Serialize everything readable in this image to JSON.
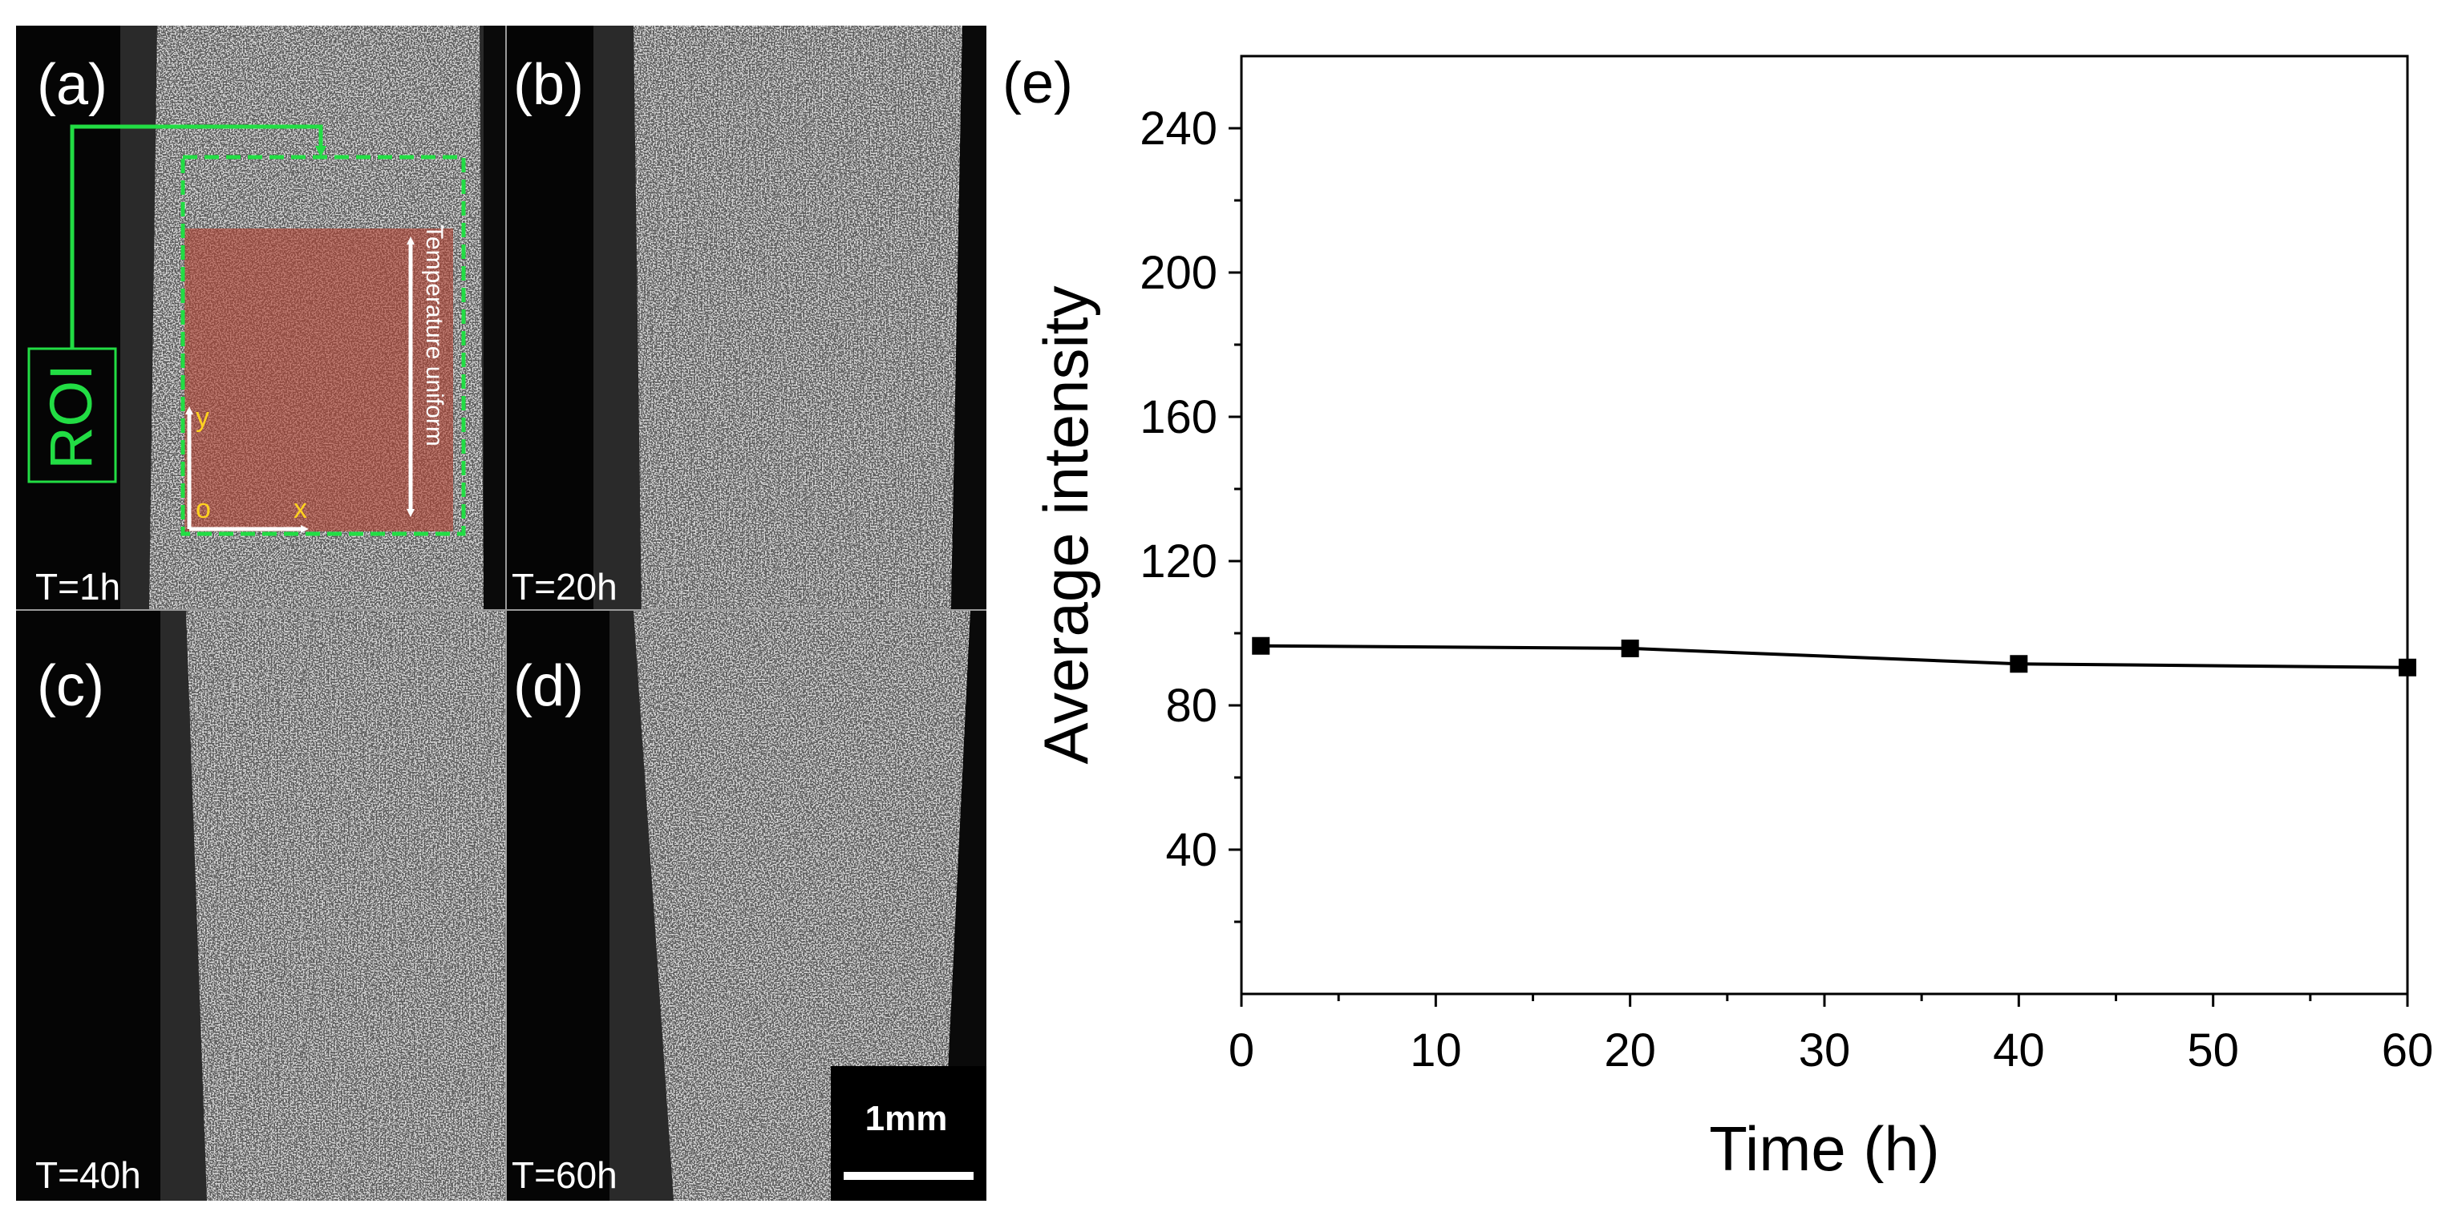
{
  "panels": {
    "a": {
      "label": "(a)",
      "time": "T=1h",
      "roi_label": "ROI",
      "axis_y": "y",
      "axis_o": "o",
      "axis_x": "x",
      "annotation": "Temperature uniform"
    },
    "b": {
      "label": "(b)",
      "time": "T=20h"
    },
    "c": {
      "label": "(c)",
      "time": "T=40h"
    },
    "d": {
      "label": "(d)",
      "time": "T=60h",
      "scale_bar": "1mm"
    },
    "e": {
      "label": "(e)"
    }
  },
  "colors": {
    "roi_green": "#22dd44",
    "roi_fill": "#b04030",
    "axis_yellow": "#ffd21f",
    "line": "#000000"
  },
  "chart_data": {
    "type": "line",
    "xlabel": "Time (h)",
    "ylabel": "Average intensity",
    "xlim": [
      0,
      60
    ],
    "ylim": [
      0,
      260
    ],
    "xticks": [
      0,
      10,
      20,
      30,
      40,
      50,
      60
    ],
    "yticks": [
      40,
      80,
      120,
      160,
      200,
      240
    ],
    "series": [
      {
        "marker": "square",
        "x": [
          1,
          20,
          40,
          60
        ],
        "y": [
          96.5,
          95.8,
          91.5,
          90.5
        ]
      }
    ]
  }
}
